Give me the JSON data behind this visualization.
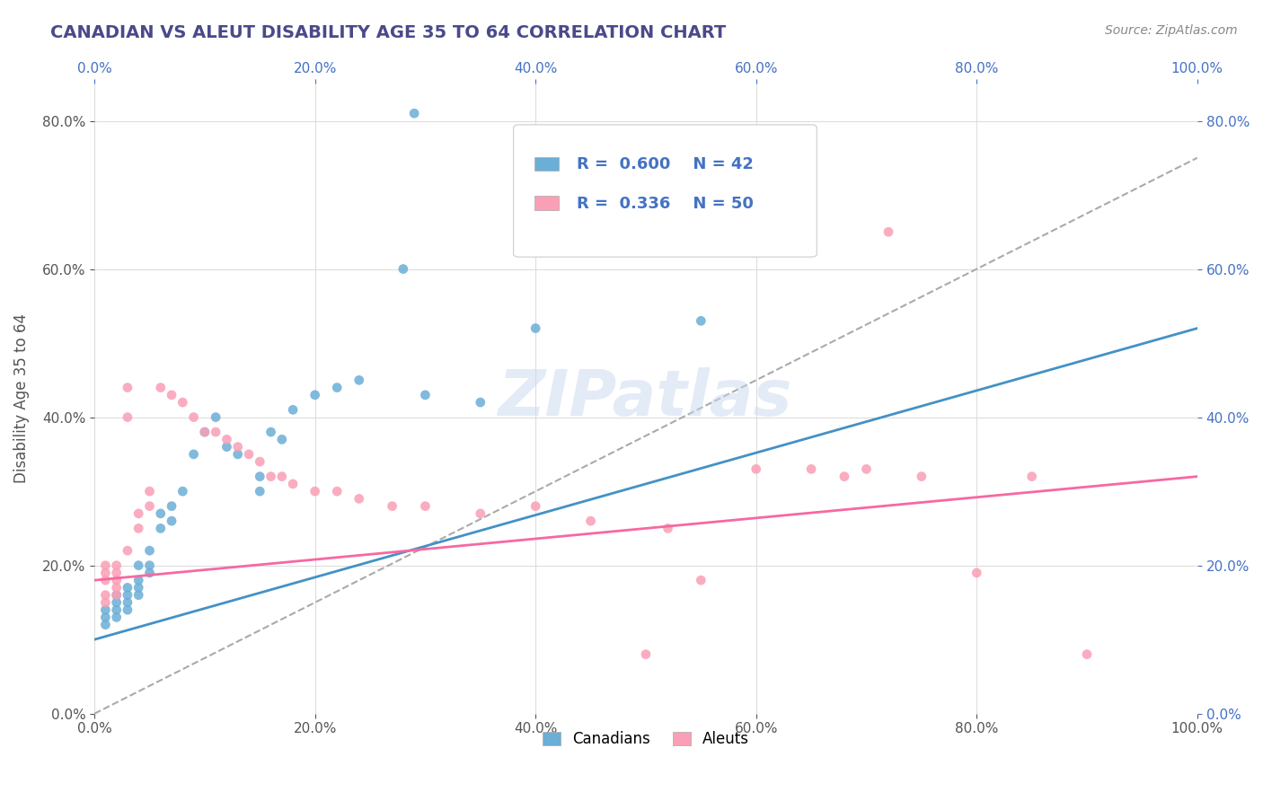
{
  "title": "CANADIAN VS ALEUT DISABILITY AGE 35 TO 64 CORRELATION CHART",
  "source": "Source: ZipAtlas.com",
  "xlabel": "",
  "ylabel": "Disability Age 35 to 64",
  "xmin": 0.0,
  "xmax": 1.0,
  "ymin": 0.0,
  "ymax": 0.85,
  "legend_labels": [
    "Canadians",
    "Aleuts"
  ],
  "legend_R1": "R =  0.600",
  "legend_N1": "N = 42",
  "legend_R2": "R =  0.336",
  "legend_N2": "N = 50",
  "blue_color": "#6baed6",
  "pink_color": "#fa9fb5",
  "blue_line_color": "#4292c6",
  "pink_line_color": "#f768a1",
  "blue_scatter": [
    [
      0.01,
      0.14
    ],
    [
      0.01,
      0.13
    ],
    [
      0.01,
      0.12
    ],
    [
      0.02,
      0.16
    ],
    [
      0.02,
      0.15
    ],
    [
      0.02,
      0.14
    ],
    [
      0.02,
      0.13
    ],
    [
      0.03,
      0.17
    ],
    [
      0.03,
      0.16
    ],
    [
      0.03,
      0.15
    ],
    [
      0.03,
      0.14
    ],
    [
      0.04,
      0.2
    ],
    [
      0.04,
      0.18
    ],
    [
      0.04,
      0.17
    ],
    [
      0.04,
      0.16
    ],
    [
      0.05,
      0.22
    ],
    [
      0.05,
      0.2
    ],
    [
      0.05,
      0.19
    ],
    [
      0.06,
      0.27
    ],
    [
      0.06,
      0.25
    ],
    [
      0.07,
      0.28
    ],
    [
      0.07,
      0.26
    ],
    [
      0.08,
      0.3
    ],
    [
      0.09,
      0.35
    ],
    [
      0.1,
      0.38
    ],
    [
      0.11,
      0.4
    ],
    [
      0.12,
      0.36
    ],
    [
      0.13,
      0.35
    ],
    [
      0.15,
      0.32
    ],
    [
      0.15,
      0.3
    ],
    [
      0.16,
      0.38
    ],
    [
      0.17,
      0.37
    ],
    [
      0.18,
      0.41
    ],
    [
      0.2,
      0.43
    ],
    [
      0.22,
      0.44
    ],
    [
      0.24,
      0.45
    ],
    [
      0.3,
      0.43
    ],
    [
      0.35,
      0.42
    ],
    [
      0.4,
      0.52
    ],
    [
      0.55,
      0.53
    ],
    [
      0.29,
      0.81
    ],
    [
      0.28,
      0.6
    ]
  ],
  "pink_scatter": [
    [
      0.01,
      0.2
    ],
    [
      0.01,
      0.19
    ],
    [
      0.01,
      0.18
    ],
    [
      0.01,
      0.16
    ],
    [
      0.01,
      0.15
    ],
    [
      0.02,
      0.2
    ],
    [
      0.02,
      0.19
    ],
    [
      0.02,
      0.18
    ],
    [
      0.02,
      0.17
    ],
    [
      0.02,
      0.16
    ],
    [
      0.03,
      0.44
    ],
    [
      0.03,
      0.4
    ],
    [
      0.03,
      0.22
    ],
    [
      0.04,
      0.27
    ],
    [
      0.04,
      0.25
    ],
    [
      0.05,
      0.3
    ],
    [
      0.05,
      0.28
    ],
    [
      0.06,
      0.44
    ],
    [
      0.07,
      0.43
    ],
    [
      0.08,
      0.42
    ],
    [
      0.09,
      0.4
    ],
    [
      0.1,
      0.38
    ],
    [
      0.11,
      0.38
    ],
    [
      0.12,
      0.37
    ],
    [
      0.13,
      0.36
    ],
    [
      0.14,
      0.35
    ],
    [
      0.15,
      0.34
    ],
    [
      0.16,
      0.32
    ],
    [
      0.17,
      0.32
    ],
    [
      0.18,
      0.31
    ],
    [
      0.2,
      0.3
    ],
    [
      0.22,
      0.3
    ],
    [
      0.24,
      0.29
    ],
    [
      0.27,
      0.28
    ],
    [
      0.3,
      0.28
    ],
    [
      0.35,
      0.27
    ],
    [
      0.4,
      0.28
    ],
    [
      0.45,
      0.26
    ],
    [
      0.5,
      0.08
    ],
    [
      0.52,
      0.25
    ],
    [
      0.55,
      0.18
    ],
    [
      0.6,
      0.33
    ],
    [
      0.65,
      0.33
    ],
    [
      0.68,
      0.32
    ],
    [
      0.7,
      0.33
    ],
    [
      0.75,
      0.32
    ],
    [
      0.8,
      0.19
    ],
    [
      0.85,
      0.32
    ],
    [
      0.9,
      0.08
    ],
    [
      0.72,
      0.65
    ]
  ],
  "blue_trend": [
    0.0,
    1.0,
    0.1,
    0.52
  ],
  "pink_trend": [
    0.0,
    1.0,
    0.18,
    0.32
  ],
  "gray_trend": [
    0.0,
    1.0,
    0.0,
    0.75
  ],
  "watermark": "ZIPatlas",
  "title_color": "#4a4a8a",
  "axis_label_color": "#555555",
  "tick_label_color": "#555555",
  "legend_text_color": "#4472c4",
  "grid_color": "#dddddd",
  "background_color": "#ffffff"
}
